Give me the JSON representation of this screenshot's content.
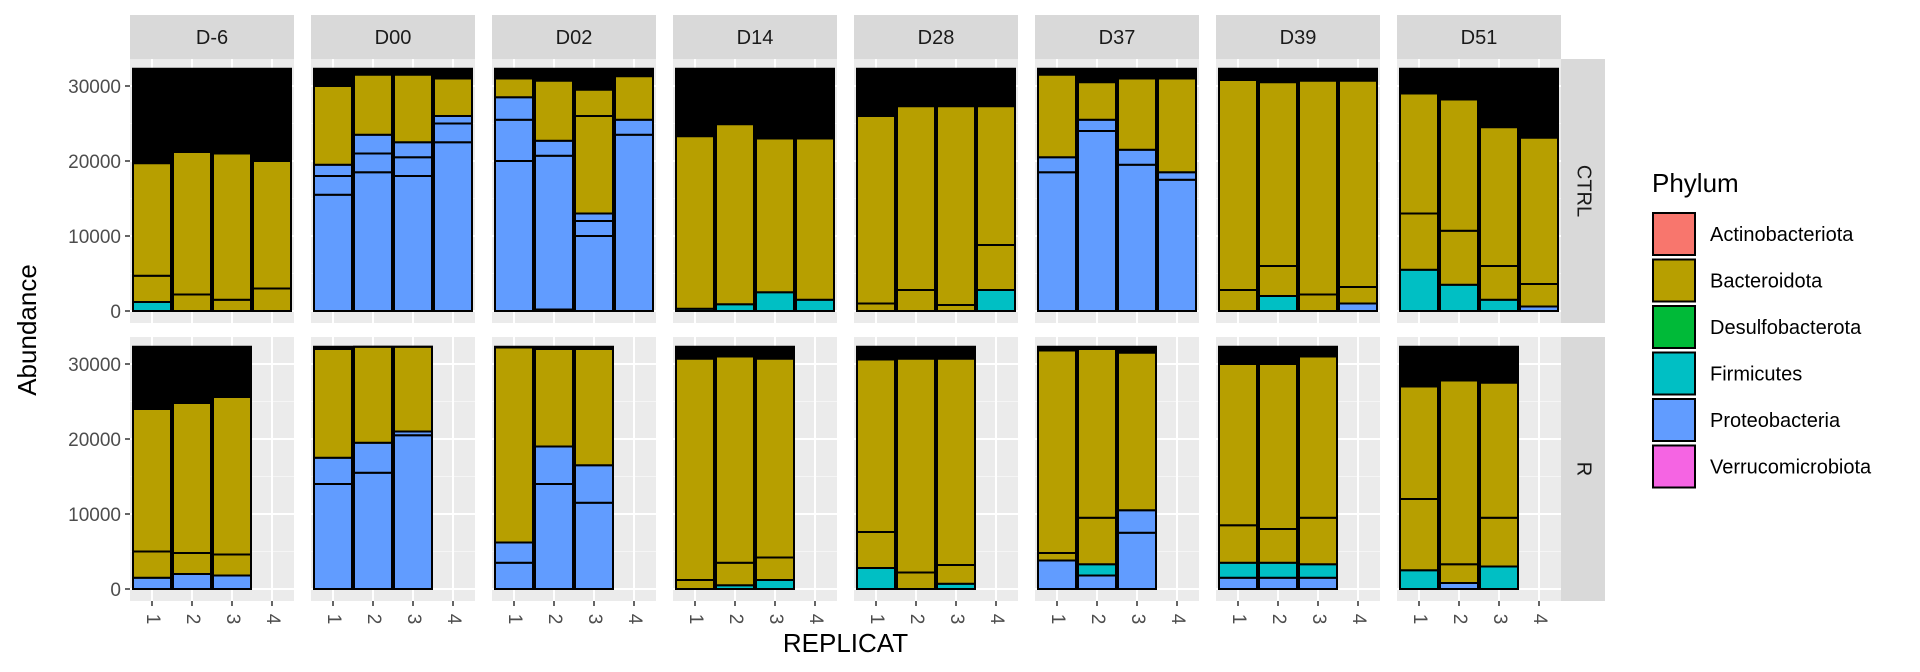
{
  "chart_data": {
    "type": "bar",
    "stacked": true,
    "x_label": "REPLICAT",
    "y_label": "Abundance",
    "y_ticks": [
      0,
      10000,
      20000,
      30000
    ],
    "y_range": [
      -1600,
      33600
    ],
    "x_categories": [
      "1",
      "2",
      "3",
      "4"
    ],
    "column_facets": [
      "D-6",
      "D00",
      "D02",
      "D14",
      "D28",
      "D37",
      "D39",
      "D51"
    ],
    "row_facets": [
      "CTRL",
      "R"
    ],
    "legend": {
      "title": "Phylum",
      "entries": [
        {
          "label": "Actinobacteriota",
          "color": "#F8766D"
        },
        {
          "label": "Bacteroidota",
          "color": "#B79F00"
        },
        {
          "label": "Desulfobacterota",
          "color": "#00BA38"
        },
        {
          "label": "Firmicutes",
          "color": "#00BFC4"
        },
        {
          "label": "Proteobacteria",
          "color": "#619CFF"
        },
        {
          "label": "Verrucomicrobiota",
          "color": "#F564E3"
        }
      ]
    },
    "total_per_bar": 32300,
    "bars_note": "segments listed bottom-to-top as [phylum, abundance]; top remainder up to total is black (many thin taxa)",
    "panels": {
      "CTRL": {
        "D-6": [
          [
            [
              "Firmicutes",
              1200
            ],
            [
              "Bacteroidota",
              3500
            ],
            [
              "Bacteroidota",
              15000
            ]
          ],
          [
            [
              "Bacteroidota",
              2200
            ],
            [
              "Bacteroidota",
              19000
            ]
          ],
          [
            [
              "Bacteroidota",
              1500
            ],
            [
              "Bacteroidota",
              19500
            ]
          ],
          [
            [
              "Bacteroidota",
              3000
            ],
            [
              "Bacteroidota",
              17000
            ]
          ]
        ],
        "D00": [
          [
            [
              "Proteobacteria",
              15500
            ],
            [
              "Proteobacteria",
              2500
            ],
            [
              "Proteobacteria",
              1500
            ],
            [
              "Bacteroidota",
              10500
            ]
          ],
          [
            [
              "Proteobacteria",
              18500
            ],
            [
              "Proteobacteria",
              2500
            ],
            [
              "Proteobacteria",
              2500
            ],
            [
              "Bacteroidota",
              8000
            ]
          ],
          [
            [
              "Proteobacteria",
              18000
            ],
            [
              "Proteobacteria",
              2500
            ],
            [
              "Proteobacteria",
              2000
            ],
            [
              "Bacteroidota",
              9000
            ]
          ],
          [
            [
              "Proteobacteria",
              22500
            ],
            [
              "Proteobacteria",
              2500
            ],
            [
              "Proteobacteria",
              1000
            ],
            [
              "Bacteroidota",
              5000
            ]
          ]
        ],
        "D02": [
          [
            [
              "Proteobacteria",
              20000
            ],
            [
              "Proteobacteria",
              5500
            ],
            [
              "Proteobacteria",
              3000
            ],
            [
              "Bacteroidota",
              2500
            ]
          ],
          [
            [
              "Bacteroidota",
              200
            ],
            [
              "Proteobacteria",
              20500
            ],
            [
              "Proteobacteria",
              2000
            ],
            [
              "Bacteroidota",
              8000
            ]
          ],
          [
            [
              "Proteobacteria",
              10000
            ],
            [
              "Proteobacteria",
              2000
            ],
            [
              "Proteobacteria",
              1000
            ],
            [
              "Bacteroidota",
              13000
            ],
            [
              "Bacteroidota",
              3500
            ]
          ],
          [
            [
              "Proteobacteria",
              23500
            ],
            [
              "Proteobacteria",
              2000
            ],
            [
              "Bacteroidota",
              5800
            ]
          ]
        ],
        "D14": [
          [
            [
              "Firmicutes",
              300
            ],
            [
              "Bacteroidota",
              23000
            ]
          ],
          [
            [
              "Firmicutes",
              900
            ],
            [
              "Bacteroidota",
              24000
            ]
          ],
          [
            [
              "Firmicutes",
              2500
            ],
            [
              "Bacteroidota",
              20500
            ]
          ],
          [
            [
              "Firmicutes",
              1500
            ],
            [
              "Bacteroidota",
              21500
            ]
          ]
        ],
        "D28": [
          [
            [
              "Bacteroidota",
              1000
            ],
            [
              "Bacteroidota",
              25000
            ]
          ],
          [
            [
              "Bacteroidota",
              2800
            ],
            [
              "Bacteroidota",
              24500
            ]
          ],
          [
            [
              "Bacteroidota",
              800
            ],
            [
              "Bacteroidota",
              26500
            ]
          ],
          [
            [
              "Firmicutes",
              2800
            ],
            [
              "Bacteroidota",
              6000
            ],
            [
              "Bacteroidota",
              18500
            ]
          ]
        ],
        "D37": [
          [
            [
              "Proteobacteria",
              18500
            ],
            [
              "Proteobacteria",
              2000
            ],
            [
              "Bacteroidota",
              11000
            ]
          ],
          [
            [
              "Proteobacteria",
              24000
            ],
            [
              "Proteobacteria",
              1500
            ],
            [
              "Bacteroidota",
              5000
            ]
          ],
          [
            [
              "Proteobacteria",
              19500
            ],
            [
              "Proteobacteria",
              2000
            ],
            [
              "Bacteroidota",
              9500
            ]
          ],
          [
            [
              "Proteobacteria",
              17500
            ],
            [
              "Proteobacteria",
              1000
            ],
            [
              "Bacteroidota",
              12500
            ]
          ]
        ],
        "D39": [
          [
            [
              "Bacteroidota",
              2800
            ],
            [
              "Bacteroidota",
              28000
            ]
          ],
          [
            [
              "Firmicutes",
              2000
            ],
            [
              "Bacteroidota",
              4000
            ],
            [
              "Bacteroidota",
              24500
            ]
          ],
          [
            [
              "Bacteroidota",
              2200
            ],
            [
              "Bacteroidota",
              28500
            ]
          ],
          [
            [
              "Proteobacteria",
              1000
            ],
            [
              "Bacteroidota",
              2200
            ],
            [
              "Bacteroidota",
              27500
            ]
          ]
        ],
        "D51": [
          [
            [
              "Firmicutes",
              5500
            ],
            [
              "Bacteroidota",
              7500
            ],
            [
              "Bacteroidota",
              16000
            ]
          ],
          [
            [
              "Firmicutes",
              3500
            ],
            [
              "Bacteroidota",
              7200
            ],
            [
              "Bacteroidota",
              17500
            ]
          ],
          [
            [
              "Firmicutes",
              1500
            ],
            [
              "Bacteroidota",
              4500
            ],
            [
              "Bacteroidota",
              18500
            ]
          ],
          [
            [
              "Proteobacteria",
              600
            ],
            [
              "Bacteroidota",
              3000
            ],
            [
              "Bacteroidota",
              19500
            ]
          ]
        ]
      },
      "R": {
        "D-6": [
          [
            [
              "Proteobacteria",
              1500
            ],
            [
              "Bacteroidota",
              3500
            ],
            [
              "Bacteroidota",
              19000
            ]
          ],
          [
            [
              "Proteobacteria",
              2000
            ],
            [
              "Bacteroidota",
              2800
            ],
            [
              "Bacteroidota",
              20000
            ]
          ],
          [
            [
              "Proteobacteria",
              1800
            ],
            [
              "Bacteroidota",
              2800
            ],
            [
              "Bacteroidota",
              21000
            ]
          ]
        ],
        "D00": [
          [
            [
              "Proteobacteria",
              14000
            ],
            [
              "Proteobacteria",
              3500
            ],
            [
              "Bacteroidota",
              14500
            ]
          ],
          [
            [
              "Proteobacteria",
              15500
            ],
            [
              "Proteobacteria",
              4000
            ],
            [
              "Bacteroidota",
              12800
            ]
          ],
          [
            [
              "Proteobacteria",
              20500
            ],
            [
              "Proteobacteria",
              500
            ],
            [
              "Bacteroidota",
              11300
            ]
          ]
        ],
        "D02": [
          [
            [
              "Proteobacteria",
              3500
            ],
            [
              "Proteobacteria",
              2700
            ],
            [
              "Bacteroidota",
              26000
            ]
          ],
          [
            [
              "Proteobacteria",
              14000
            ],
            [
              "Proteobacteria",
              5000
            ],
            [
              "Bacteroidota",
              13000
            ]
          ],
          [
            [
              "Proteobacteria",
              11500
            ],
            [
              "Proteobacteria",
              5000
            ],
            [
              "Bacteroidota",
              15500
            ]
          ]
        ],
        "D14": [
          [
            [
              "Bacteroidota",
              1200
            ],
            [
              "Bacteroidota",
              29500
            ]
          ],
          [
            [
              "Firmicutes",
              500
            ],
            [
              "Bacteroidota",
              3000
            ],
            [
              "Bacteroidota",
              27500
            ]
          ],
          [
            [
              "Firmicutes",
              1200
            ],
            [
              "Bacteroidota",
              3000
            ],
            [
              "Bacteroidota",
              26500
            ]
          ]
        ],
        "D28": [
          [
            [
              "Firmicutes",
              2800
            ],
            [
              "Bacteroidota",
              4800
            ],
            [
              "Bacteroidota",
              23000
            ]
          ],
          [
            [
              "Bacteroidota",
              2200
            ],
            [
              "Bacteroidota",
              28500
            ]
          ],
          [
            [
              "Firmicutes",
              700
            ],
            [
              "Bacteroidota",
              2500
            ],
            [
              "Bacteroidota",
              27500
            ]
          ]
        ],
        "D37": [
          [
            [
              "Proteobacteria",
              3800
            ],
            [
              "Bacteroidota",
              1000
            ],
            [
              "Bacteroidota",
              27000
            ]
          ],
          [
            [
              "Proteobacteria",
              1800
            ],
            [
              "Firmicutes",
              1500
            ],
            [
              "Bacteroidota",
              6200
            ],
            [
              "Bacteroidota",
              22500
            ]
          ],
          [
            [
              "Proteobacteria",
              7500
            ],
            [
              "Proteobacteria",
              3000
            ],
            [
              "Bacteroidota",
              21000
            ]
          ]
        ],
        "D39": [
          [
            [
              "Proteobacteria",
              1500
            ],
            [
              "Firmicutes",
              2000
            ],
            [
              "Bacteroidota",
              5000
            ],
            [
              "Bacteroidota",
              21500
            ]
          ],
          [
            [
              "Proteobacteria",
              1500
            ],
            [
              "Firmicutes",
              2000
            ],
            [
              "Bacteroidota",
              4500
            ],
            [
              "Bacteroidota",
              22000
            ]
          ],
          [
            [
              "Proteobacteria",
              1500
            ],
            [
              "Firmicutes",
              1800
            ],
            [
              "Bacteroidota",
              6200
            ],
            [
              "Bacteroidota",
              21500
            ]
          ]
        ],
        "D51": [
          [
            [
              "Firmicutes",
              2500
            ],
            [
              "Bacteroidota",
              9500
            ],
            [
              "Bacteroidota",
              15000
            ]
          ],
          [
            [
              "Proteobacteria",
              800
            ],
            [
              "Bacteroidota",
              2500
            ],
            [
              "Bacteroidota",
              24500
            ]
          ],
          [
            [
              "Firmicutes",
              3000
            ],
            [
              "Bacteroidota",
              6500
            ],
            [
              "Bacteroidota",
              18000
            ]
          ]
        ]
      }
    }
  }
}
